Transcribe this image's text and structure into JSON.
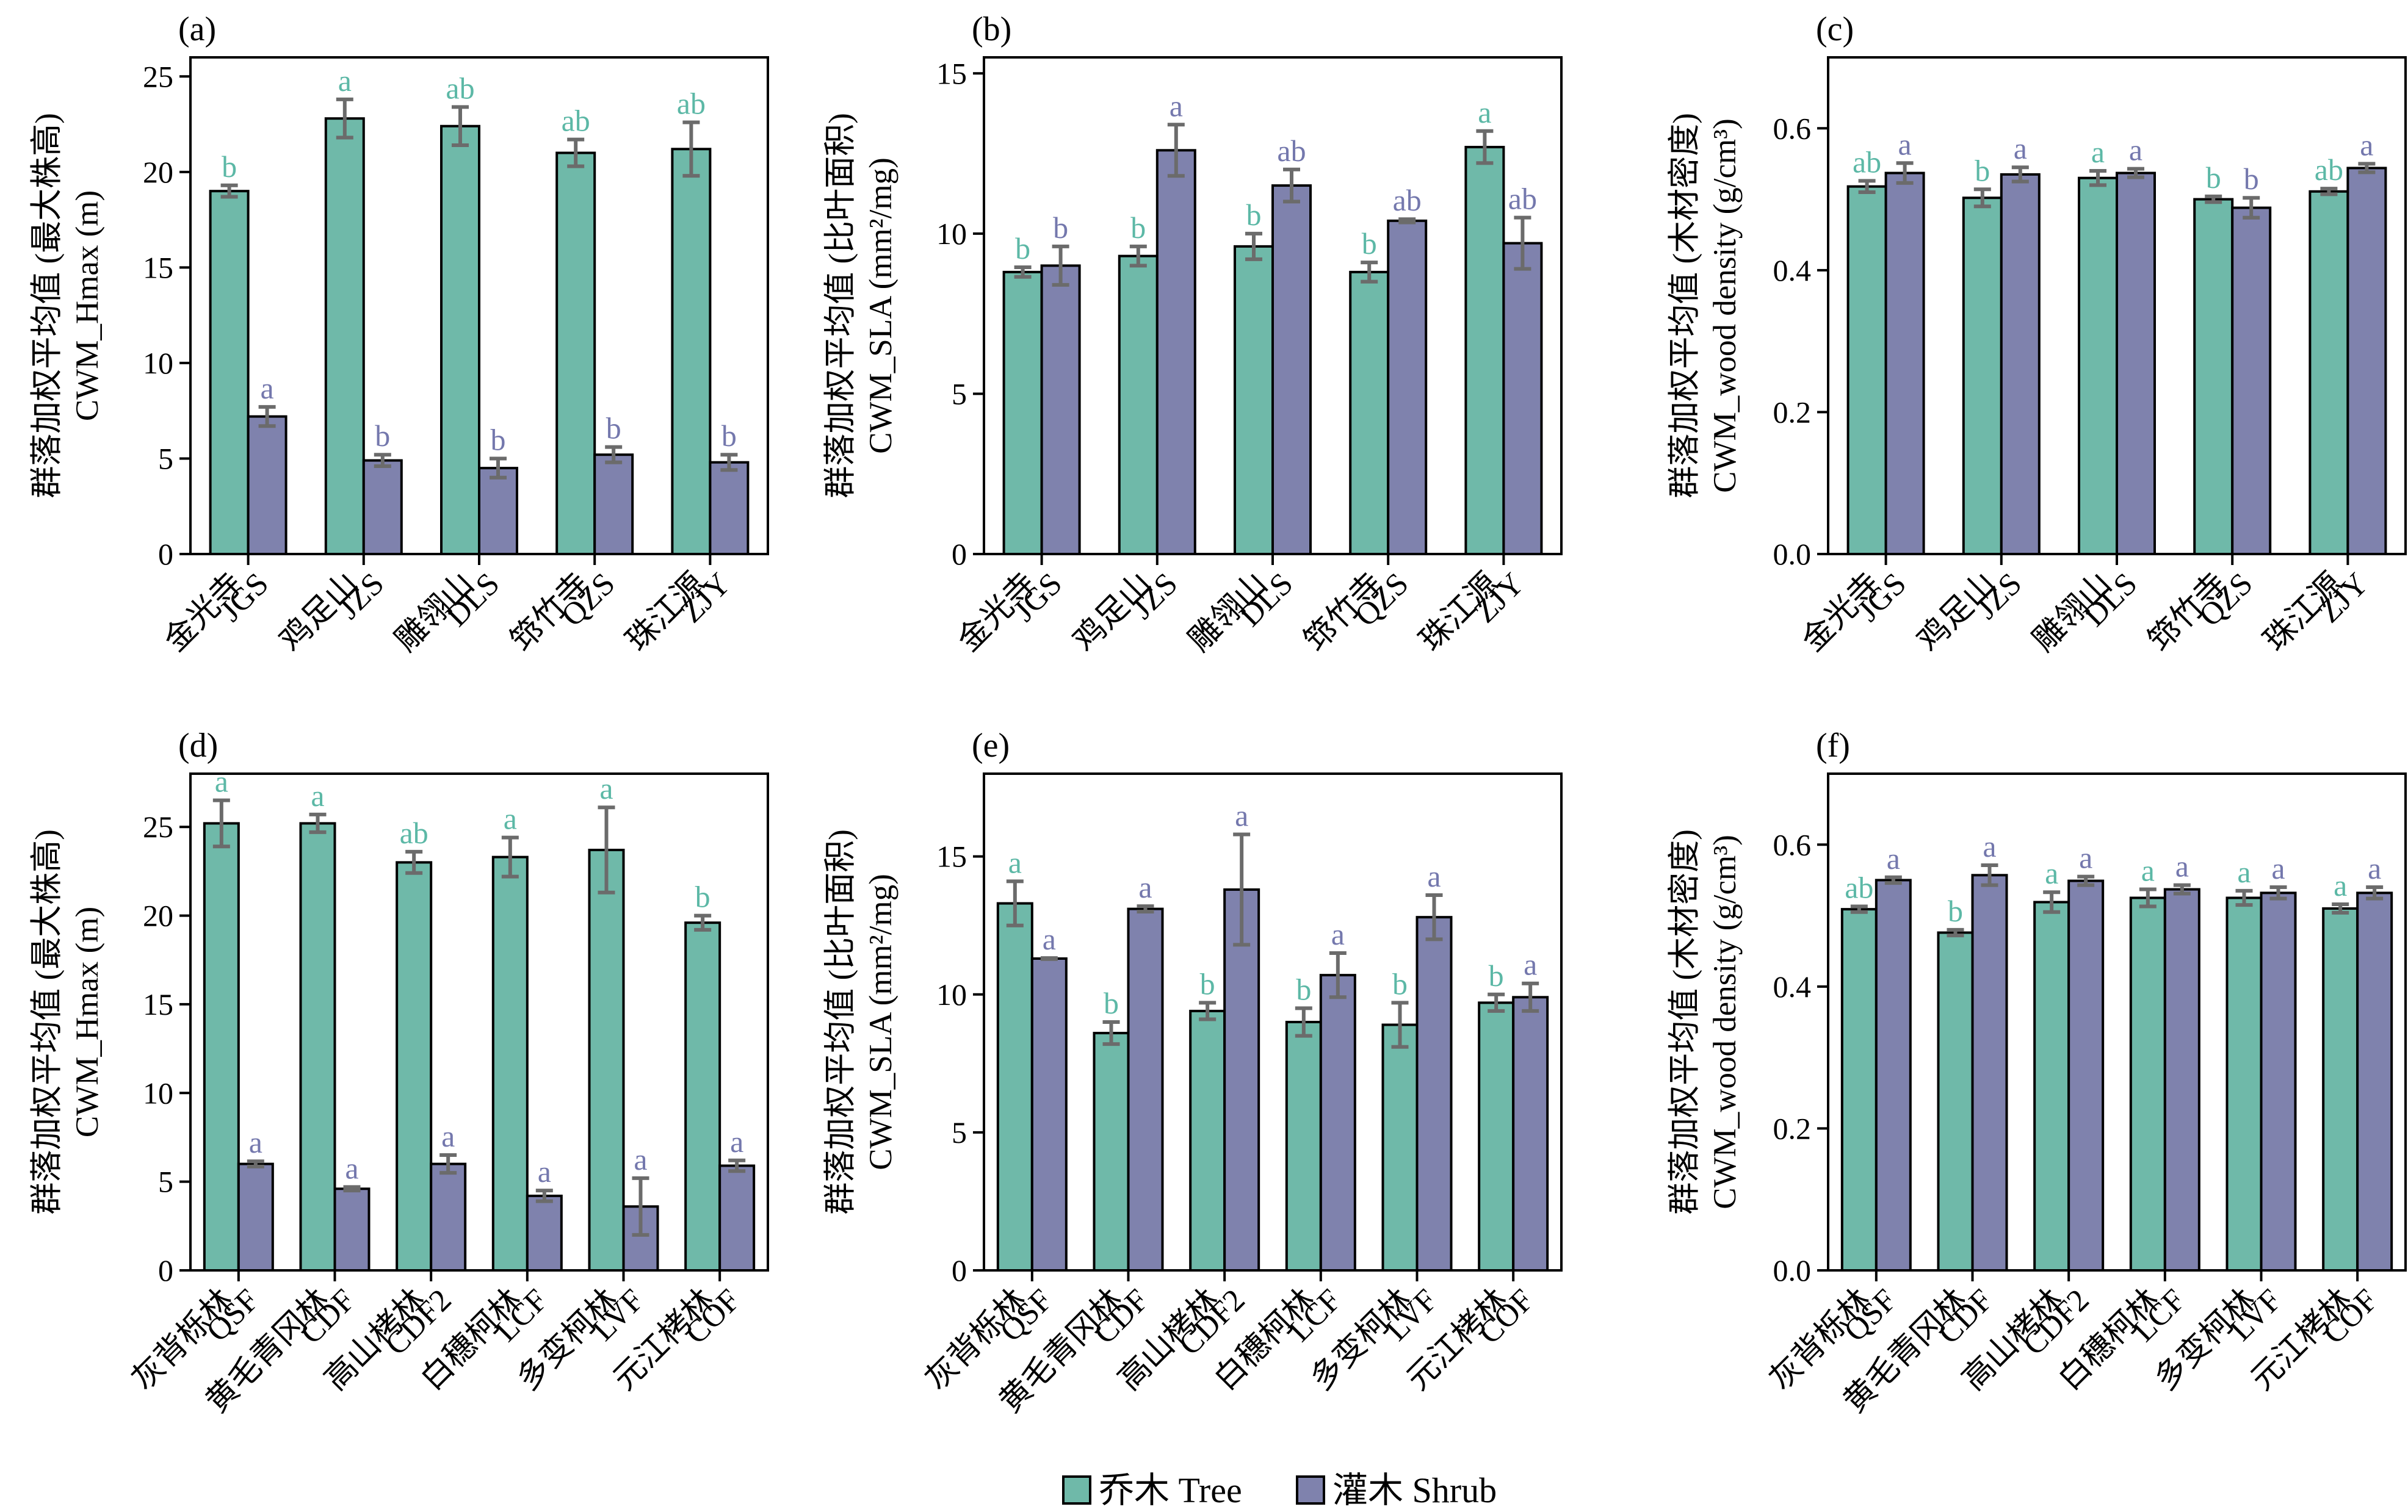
{
  "colors": {
    "tree": "#6fb9a9",
    "shrub": "#7f82ad",
    "tree_letter": "#5cb8a6",
    "shrub_letter": "#7478ad",
    "error": "#6b6b6b"
  },
  "legend": {
    "tree": "乔木 Tree",
    "shrub": "灌木 Shrub"
  },
  "chart_data": [
    {
      "type": "bar",
      "panel": "(a)",
      "ylabel_cn": "群落加权平均值 (最大株高)",
      "ylabel_en": "CWM_Hmax (m)",
      "ylim": [
        0,
        26
      ],
      "yticks": [
        "0",
        "5",
        "10",
        "15",
        "20",
        "25"
      ],
      "categories": [
        [
          "金光寺",
          "JGS"
        ],
        [
          "鸡足山",
          "JZS"
        ],
        [
          "雕翎山",
          "DLS"
        ],
        [
          "筇竹寺",
          "QZS"
        ],
        [
          "珠江源",
          "ZJY"
        ]
      ],
      "series": [
        {
          "name": "乔木 Tree",
          "values": [
            19.0,
            22.8,
            22.4,
            21.0,
            21.2
          ],
          "errors": [
            0.3,
            1.0,
            1.0,
            0.7,
            1.4
          ],
          "letters": [
            "b",
            "a",
            "ab",
            "ab",
            "ab"
          ]
        },
        {
          "name": "灌木 Shrub",
          "values": [
            7.2,
            4.9,
            4.5,
            5.2,
            4.8
          ],
          "errors": [
            0.5,
            0.3,
            0.5,
            0.4,
            0.4
          ],
          "letters": [
            "a",
            "b",
            "b",
            "b",
            "b"
          ]
        }
      ]
    },
    {
      "type": "bar",
      "panel": "(b)",
      "ylabel_cn": "群落加权平均值 (比叶面积)",
      "ylabel_en": "CWM_SLA (mm²/mg)",
      "ylim": [
        0,
        15.5
      ],
      "yticks": [
        "0",
        "5",
        "10",
        "15"
      ],
      "categories": [
        [
          "金光寺",
          "JGS"
        ],
        [
          "鸡足山",
          "JZS"
        ],
        [
          "雕翎山",
          "DLS"
        ],
        [
          "筇竹寺",
          "QZS"
        ],
        [
          "珠江源",
          "ZJY"
        ]
      ],
      "series": [
        {
          "name": "乔木 Tree",
          "values": [
            8.8,
            9.3,
            9.6,
            8.8,
            12.7
          ],
          "errors": [
            0.15,
            0.3,
            0.4,
            0.3,
            0.5
          ],
          "letters": [
            "b",
            "b",
            "b",
            "b",
            "a"
          ]
        },
        {
          "name": "灌木 Shrub",
          "values": [
            9.0,
            12.6,
            11.5,
            10.4,
            9.7
          ],
          "errors": [
            0.6,
            0.8,
            0.5,
            0.05,
            0.8
          ],
          "letters": [
            "b",
            "a",
            "ab",
            "ab",
            "ab"
          ]
        }
      ]
    },
    {
      "type": "bar",
      "panel": "(c)",
      "ylabel_cn": "群落加权平均值 (木材密度)",
      "ylabel_en": "CWM_wood density (g/cm³)",
      "ylim": [
        0,
        0.7
      ],
      "yticks": [
        "0.0",
        "0.2",
        "0.4",
        "0.6"
      ],
      "categories": [
        [
          "金光寺",
          "JGS"
        ],
        [
          "鸡足山",
          "JZS"
        ],
        [
          "雕翎山",
          "DLS"
        ],
        [
          "筇竹寺",
          "QZS"
        ],
        [
          "珠江源",
          "ZJY"
        ]
      ],
      "series": [
        {
          "name": "乔木 Tree",
          "values": [
            0.518,
            0.502,
            0.53,
            0.5,
            0.511
          ],
          "errors": [
            0.008,
            0.012,
            0.01,
            0.004,
            0.004
          ],
          "letters": [
            "ab",
            "b",
            "a",
            "b",
            "ab"
          ]
        },
        {
          "name": "灌木 Shrub",
          "values": [
            0.537,
            0.535,
            0.537,
            0.488,
            0.544
          ],
          "errors": [
            0.014,
            0.01,
            0.006,
            0.014,
            0.006
          ],
          "letters": [
            "a",
            "a",
            "a",
            "b",
            "a"
          ]
        }
      ]
    },
    {
      "type": "bar",
      "panel": "(d)",
      "ylabel_cn": "群落加权平均值 (最大株高)",
      "ylabel_en": "CWM_Hmax (m)",
      "ylim": [
        0,
        28
      ],
      "yticks": [
        "0",
        "5",
        "10",
        "15",
        "20",
        "25"
      ],
      "categories": [
        [
          "灰背栎林",
          "QSF"
        ],
        [
          "黄毛青冈林",
          "CDF"
        ],
        [
          "高山栲林",
          "CDF2"
        ],
        [
          "白穗柯林",
          "LCF"
        ],
        [
          "多变柯林",
          "LVF"
        ],
        [
          "元江栲林",
          "COF"
        ]
      ],
      "series": [
        {
          "name": "乔木 Tree",
          "values": [
            25.2,
            25.2,
            23.0,
            23.3,
            23.7,
            19.6
          ],
          "errors": [
            1.3,
            0.5,
            0.6,
            1.1,
            2.4,
            0.4
          ],
          "letters": [
            "a",
            "a",
            "ab",
            "a",
            "a",
            "b"
          ]
        },
        {
          "name": "灌木 Shrub",
          "values": [
            6.0,
            4.6,
            6.0,
            4.2,
            3.6,
            5.9
          ],
          "errors": [
            0.15,
            0.1,
            0.5,
            0.3,
            1.6,
            0.3
          ],
          "letters": [
            "a",
            "a",
            "a",
            "a",
            "a",
            "a"
          ]
        }
      ]
    },
    {
      "type": "bar",
      "panel": "(e)",
      "ylabel_cn": "群落加权平均值 (比叶面积)",
      "ylabel_en": "CWM_SLA (mm²/mg)",
      "ylim": [
        0,
        18
      ],
      "yticks": [
        "0",
        "5",
        "10",
        "15"
      ],
      "categories": [
        [
          "灰背栎林",
          "QSF"
        ],
        [
          "黄毛青冈林",
          "CDF"
        ],
        [
          "高山栲林",
          "CDF2"
        ],
        [
          "白穗柯林",
          "LCF"
        ],
        [
          "多变柯林",
          "LVF"
        ],
        [
          "元江栲林",
          "COF"
        ]
      ],
      "series": [
        {
          "name": "乔木 Tree",
          "values": [
            13.3,
            8.6,
            9.4,
            9.0,
            8.9,
            9.7
          ],
          "errors": [
            0.8,
            0.4,
            0.3,
            0.5,
            0.8,
            0.3
          ],
          "letters": [
            "a",
            "b",
            "b",
            "b",
            "b",
            "b"
          ]
        },
        {
          "name": "灌木 Shrub",
          "values": [
            11.3,
            13.1,
            13.8,
            10.7,
            12.8,
            9.9
          ],
          "errors": [
            0.02,
            0.1,
            2.0,
            0.8,
            0.8,
            0.5
          ],
          "letters": [
            "a",
            "a",
            "a",
            "a",
            "a",
            "a"
          ]
        }
      ]
    },
    {
      "type": "bar",
      "panel": "(f)",
      "ylabel_cn": "群落加权平均值 (木材密度)",
      "ylabel_en": "CWM_wood density (g/cm³)",
      "ylim": [
        0,
        0.7
      ],
      "yticks": [
        "0.0",
        "0.2",
        "0.4",
        "0.6"
      ],
      "categories": [
        [
          "灰背栎林",
          "QSF"
        ],
        [
          "黄毛青冈林",
          "CDF"
        ],
        [
          "高山栲林",
          "CDF2"
        ],
        [
          "白穗柯林",
          "LCF"
        ],
        [
          "多变柯林",
          "LVF"
        ],
        [
          "元江栲林",
          "COF"
        ]
      ],
      "series": [
        {
          "name": "乔木 Tree",
          "values": [
            0.509,
            0.476,
            0.519,
            0.525,
            0.525,
            0.51
          ],
          "errors": [
            0.004,
            0.004,
            0.014,
            0.012,
            0.01,
            0.006
          ],
          "letters": [
            "ab",
            "b",
            "a",
            "a",
            "a",
            "a"
          ]
        },
        {
          "name": "灌木 Shrub",
          "values": [
            0.55,
            0.557,
            0.549,
            0.537,
            0.532,
            0.532
          ],
          "errors": [
            0.004,
            0.014,
            0.006,
            0.006,
            0.008,
            0.008
          ],
          "letters": [
            "a",
            "a",
            "a",
            "a",
            "a",
            "a"
          ]
        }
      ]
    }
  ]
}
